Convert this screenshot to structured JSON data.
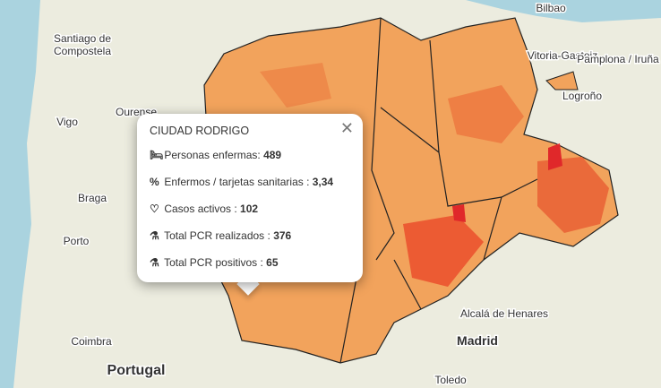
{
  "map_labels": {
    "places": [
      "Santiago de",
      "Compostela",
      "Ourense",
      "Vigo",
      "Braga",
      "Porto",
      "Coimbra",
      "Bilbao",
      "Vitoria-Gasteiz",
      "Pamplona / Iruña",
      "Logroño",
      "Alcalá de Henares",
      "Toledo"
    ],
    "country": "Portugal",
    "capital": "Madrid"
  },
  "popup": {
    "title": "CIUDAD RODRIGO",
    "rows": [
      {
        "label": "Personas enfermas: ",
        "value": "489"
      },
      {
        "label": "Enfermos / tarjetas sanitarias : ",
        "value": "3,34"
      },
      {
        "label": "Casos activos : ",
        "value": "102"
      },
      {
        "label": "Total PCR realizados : ",
        "value": "376"
      },
      {
        "label": "Total PCR positivos : ",
        "value": "65"
      }
    ]
  }
}
